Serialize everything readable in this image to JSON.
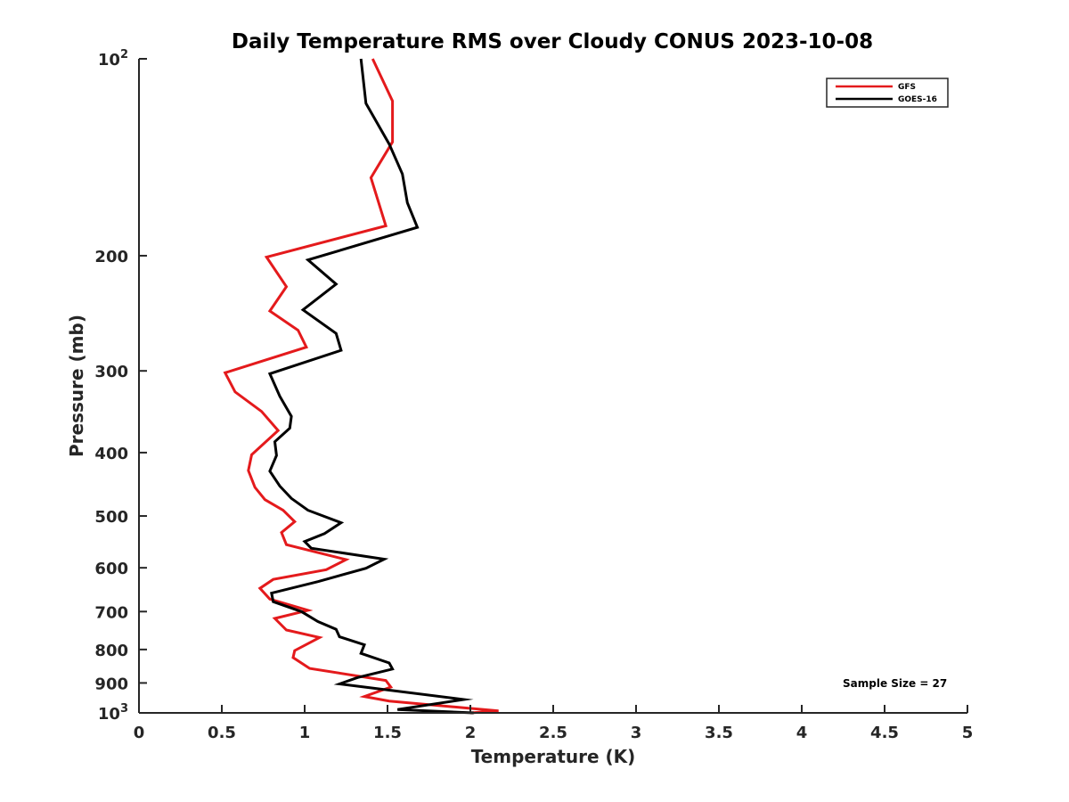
{
  "chart_data": {
    "type": "line",
    "title": "Daily Temperature RMS over Cloudy CONUS 2023-10-08",
    "xlabel": "Temperature (K)",
    "ylabel": "Pressure (mb)",
    "xlim": [
      0,
      5
    ],
    "ylim": [
      100,
      1000
    ],
    "y_scale": "log",
    "y_reversed": true,
    "grid": false,
    "legend_position": "top-right",
    "x_ticks": [
      "0",
      "0.5",
      "1",
      "1.5",
      "2",
      "2.5",
      "3",
      "3.5",
      "4",
      "4.5",
      "5"
    ],
    "y_ticks": [
      {
        "value": 100,
        "base": "10",
        "exp": "2"
      },
      {
        "value": 200,
        "label": "200"
      },
      {
        "value": 300,
        "label": "300"
      },
      {
        "value": 400,
        "label": "400"
      },
      {
        "value": 500,
        "label": "500"
      },
      {
        "value": 600,
        "label": "600"
      },
      {
        "value": 700,
        "label": "700"
      },
      {
        "value": 800,
        "label": "800"
      },
      {
        "value": 900,
        "label": "900"
      },
      {
        "value": 1000,
        "base": "10",
        "exp": "3"
      }
    ],
    "annotation": "Sample Size = 27",
    "series": [
      {
        "name": "GFS",
        "color": "#e41a1c",
        "points": [
          [
            1.41,
            100
          ],
          [
            1.53,
            116
          ],
          [
            1.53,
            134
          ],
          [
            1.4,
            152
          ],
          [
            1.49,
            180
          ],
          [
            0.77,
            201
          ],
          [
            0.89,
            223
          ],
          [
            0.79,
            243
          ],
          [
            0.96,
            260
          ],
          [
            1.01,
            276
          ],
          [
            0.52,
            302
          ],
          [
            0.58,
            323
          ],
          [
            0.74,
            346
          ],
          [
            0.84,
            370
          ],
          [
            0.68,
            403
          ],
          [
            0.66,
            426
          ],
          [
            0.7,
            452
          ],
          [
            0.76,
            472
          ],
          [
            0.87,
            490
          ],
          [
            0.94,
            510
          ],
          [
            0.86,
            530
          ],
          [
            0.89,
            553
          ],
          [
            1.25,
            583
          ],
          [
            1.13,
            604
          ],
          [
            0.81,
            625
          ],
          [
            0.73,
            645
          ],
          [
            0.79,
            670
          ],
          [
            1.02,
            697
          ],
          [
            0.82,
            717
          ],
          [
            0.89,
            747
          ],
          [
            1.09,
            767
          ],
          [
            0.94,
            803
          ],
          [
            0.93,
            823
          ],
          [
            1.03,
            855
          ],
          [
            1.49,
            892
          ],
          [
            1.52,
            913
          ],
          [
            1.36,
            944
          ],
          [
            1.51,
            959
          ],
          [
            2.17,
            993
          ],
          [
            2.0,
            1000
          ]
        ]
      },
      {
        "name": "GOES-16",
        "color": "#000000",
        "points": [
          [
            1.34,
            100
          ],
          [
            1.37,
            117
          ],
          [
            1.51,
            135
          ],
          [
            1.59,
            150
          ],
          [
            1.62,
            166
          ],
          [
            1.68,
            181
          ],
          [
            1.02,
            203
          ],
          [
            1.19,
            221
          ],
          [
            0.99,
            242
          ],
          [
            1.19,
            263
          ],
          [
            1.22,
            279
          ],
          [
            0.79,
            303
          ],
          [
            0.85,
            328
          ],
          [
            0.92,
            352
          ],
          [
            0.91,
            367
          ],
          [
            0.82,
            385
          ],
          [
            0.83,
            404
          ],
          [
            0.79,
            427
          ],
          [
            0.85,
            450
          ],
          [
            0.92,
            470
          ],
          [
            1.02,
            490
          ],
          [
            1.22,
            512
          ],
          [
            1.12,
            532
          ],
          [
            1.0,
            547
          ],
          [
            1.04,
            560
          ],
          [
            1.48,
            582
          ],
          [
            1.37,
            601
          ],
          [
            1.08,
            630
          ],
          [
            0.8,
            656
          ],
          [
            0.81,
            676
          ],
          [
            0.98,
            700
          ],
          [
            1.08,
            725
          ],
          [
            1.19,
            745
          ],
          [
            1.21,
            765
          ],
          [
            1.36,
            787
          ],
          [
            1.34,
            811
          ],
          [
            1.51,
            839
          ],
          [
            1.53,
            857
          ],
          [
            1.32,
            883
          ],
          [
            1.21,
            903
          ],
          [
            1.96,
            954
          ],
          [
            1.56,
            988
          ],
          [
            2.02,
            1000
          ]
        ]
      }
    ]
  }
}
